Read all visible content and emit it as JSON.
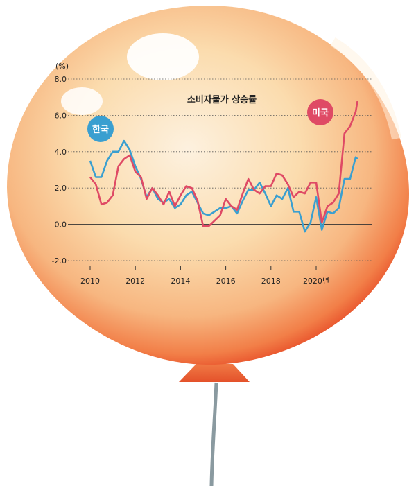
{
  "colors": {
    "korea": "#3a9fd0",
    "usa": "#df4a65",
    "balloon_edge": "#e8502a",
    "string": "#8a9aa0"
  },
  "chart_data": {
    "type": "line",
    "title": "소비자물가 상승률",
    "unit_label": "(%)",
    "xlabel": "",
    "ylabel": "",
    "ylim": [
      -2.0,
      8.0
    ],
    "y_ticks": [
      "8.0",
      "6.0",
      "4.0",
      "2.0",
      "0.0",
      "-2.0"
    ],
    "x_ticks": [
      "2010",
      "2012",
      "2014",
      "2016",
      "2018",
      "2020년"
    ],
    "grid": "dotted-horizontal",
    "legend": "inline-labels",
    "series": [
      {
        "name": "한국",
        "color_key": "korea",
        "x": [
          2010.0,
          2010.25,
          2010.5,
          2010.75,
          2011.0,
          2011.25,
          2011.5,
          2011.75,
          2012.0,
          2012.25,
          2012.5,
          2012.75,
          2013.0,
          2013.25,
          2013.5,
          2013.75,
          2014.0,
          2014.25,
          2014.5,
          2014.75,
          2015.0,
          2015.25,
          2015.5,
          2015.75,
          2016.0,
          2016.25,
          2016.5,
          2016.75,
          2017.0,
          2017.25,
          2017.5,
          2017.75,
          2018.0,
          2018.25,
          2018.5,
          2018.75,
          2019.0,
          2019.25,
          2019.5,
          2019.75,
          2020.0,
          2020.25,
          2020.5,
          2020.75,
          2021.0,
          2021.25,
          2021.5,
          2021.75,
          2021.83
        ],
        "y": [
          3.5,
          2.6,
          2.6,
          3.5,
          4.0,
          4.0,
          4.6,
          4.1,
          3.2,
          2.5,
          1.5,
          2.0,
          1.4,
          1.2,
          1.4,
          0.9,
          1.1,
          1.6,
          1.8,
          1.2,
          0.6,
          0.5,
          0.7,
          0.9,
          0.9,
          1.0,
          0.6,
          1.3,
          1.9,
          1.9,
          2.3,
          1.7,
          1.0,
          1.6,
          1.4,
          2.0,
          0.7,
          0.7,
          -0.4,
          0.1,
          1.5,
          -0.3,
          0.7,
          0.6,
          0.9,
          2.5,
          2.5,
          3.7,
          3.6
        ]
      },
      {
        "name": "미국",
        "color_key": "usa",
        "x": [
          2010.0,
          2010.25,
          2010.5,
          2010.75,
          2011.0,
          2011.25,
          2011.5,
          2011.75,
          2012.0,
          2012.25,
          2012.5,
          2012.75,
          2013.0,
          2013.25,
          2013.5,
          2013.75,
          2014.0,
          2014.25,
          2014.5,
          2014.75,
          2015.0,
          2015.25,
          2015.5,
          2015.75,
          2016.0,
          2016.25,
          2016.5,
          2016.75,
          2017.0,
          2017.25,
          2017.5,
          2017.75,
          2018.0,
          2018.25,
          2018.5,
          2018.75,
          2019.0,
          2019.25,
          2019.5,
          2019.75,
          2020.0,
          2020.25,
          2020.5,
          2020.75,
          2021.0,
          2021.25,
          2021.5,
          2021.75,
          2021.83
        ],
        "y": [
          2.6,
          2.2,
          1.1,
          1.2,
          1.6,
          3.2,
          3.6,
          3.8,
          2.9,
          2.6,
          1.4,
          2.0,
          1.6,
          1.1,
          1.8,
          1.0,
          1.6,
          2.1,
          2.0,
          1.3,
          -0.1,
          -0.1,
          0.2,
          0.5,
          1.4,
          1.0,
          0.8,
          1.7,
          2.5,
          1.9,
          1.7,
          2.1,
          2.1,
          2.8,
          2.7,
          2.2,
          1.5,
          1.8,
          1.7,
          2.3,
          2.3,
          0.1,
          1.0,
          1.2,
          1.7,
          5.0,
          5.4,
          6.2,
          6.8
        ]
      }
    ]
  }
}
